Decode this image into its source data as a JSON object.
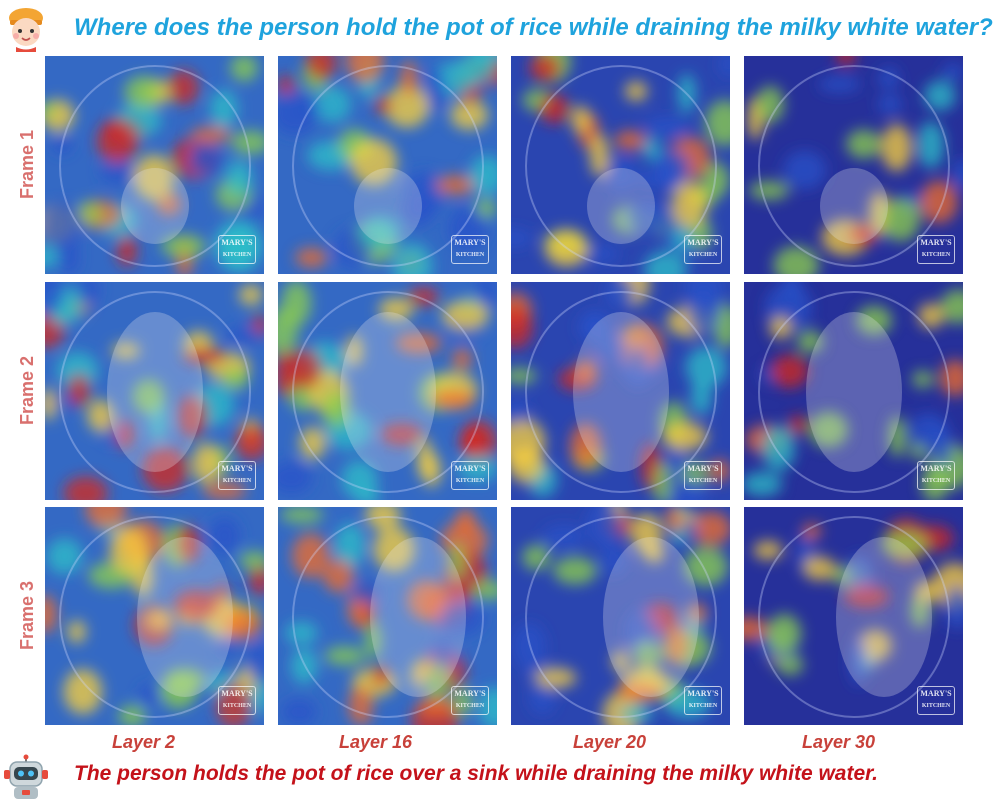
{
  "question": {
    "text": "Where does the person hold the pot of rice while draining the milky white water?"
  },
  "answer": {
    "text": "The person holds the pot of rice over a sink while draining the milky white water."
  },
  "rows": [
    "Frame 1",
    "Frame 2",
    "Frame 3"
  ],
  "columns": [
    "Layer 2",
    "Layer 16",
    "Layer 20",
    "Layer 30"
  ],
  "watermark": {
    "line1": "MARY'S",
    "line2": "KITCHEN"
  },
  "colors": {
    "question": "#1fa3dd",
    "answer": "#c4121a",
    "row_label": "#d9706e",
    "layer_label": "#c8413a"
  },
  "icons": {
    "user": "user-avatar-icon",
    "assistant": "robot-avatar-icon"
  }
}
